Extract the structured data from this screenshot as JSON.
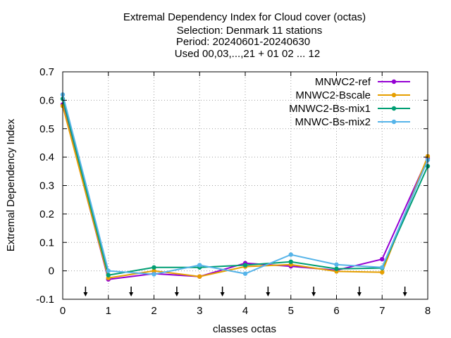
{
  "chart_data": {
    "type": "line",
    "title_lines": [
      "Extremal Dependency Index  for Cloud cover (octas)",
      "Selection: Denmark     11 stations",
      "Period: 20240601-20240630",
      "Used 00,03,...,21 + 01 02 ... 12"
    ],
    "xlabel": "classes octas",
    "ylabel": "Extremal Dependency Index",
    "xlim": [
      0,
      8
    ],
    "ylim": [
      -0.1,
      0.7
    ],
    "x_ticks": [
      "0",
      "1",
      "2",
      "3",
      "4",
      "5",
      "6",
      "7",
      "8"
    ],
    "y_ticks": [
      "-0.1",
      "0",
      "0.1",
      "0.2",
      "0.3",
      "0.4",
      "0.5",
      "0.6",
      "0.7"
    ],
    "grid": true,
    "legend_position": "top-right",
    "arrow_markers_x": [
      0.5,
      1.5,
      2.5,
      3.5,
      4.5,
      5.5,
      6.5,
      7.5
    ],
    "x": [
      0,
      1,
      2,
      3,
      4,
      5,
      6,
      7,
      8
    ],
    "series": [
      {
        "name": "MNWC2-ref",
        "color": "#9400d3",
        "values": [
          0.585,
          -0.03,
          -0.01,
          -0.02,
          0.027,
          0.016,
          0.002,
          0.041,
          0.397
        ]
      },
      {
        "name": "MNWC2-Bscale",
        "color": "#e69f00",
        "values": [
          0.58,
          -0.025,
          0.0,
          -0.02,
          0.015,
          0.022,
          -0.002,
          -0.005,
          0.403
        ]
      },
      {
        "name": "MNWC2-Bs-mix1",
        "color": "#009e73",
        "values": [
          0.605,
          -0.015,
          0.012,
          0.012,
          0.02,
          0.032,
          0.007,
          0.01,
          0.368
        ]
      },
      {
        "name": "MNWC-Bs-mix2",
        "color": "#56b4e9",
        "values": [
          0.62,
          0.0,
          -0.012,
          0.02,
          -0.01,
          0.057,
          0.022,
          0.012,
          0.39
        ]
      }
    ]
  }
}
